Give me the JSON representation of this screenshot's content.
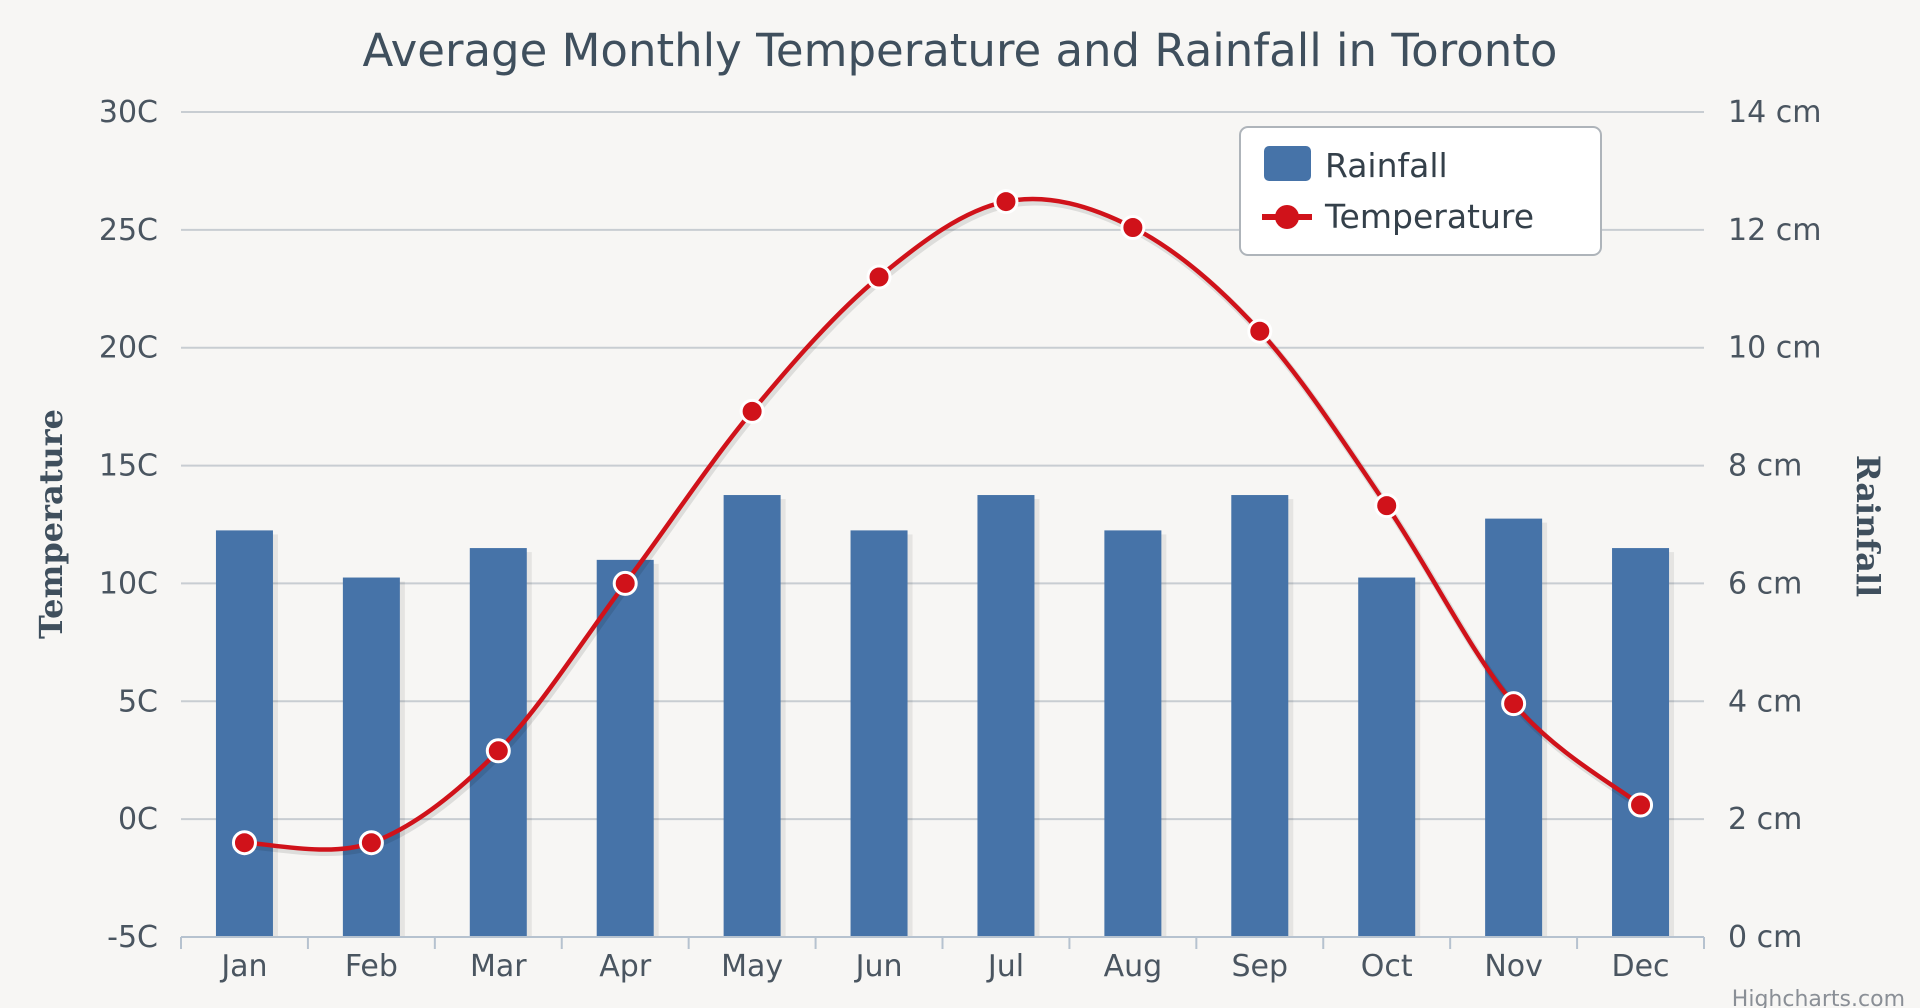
{
  "chart_data": {
    "type": "bar+line",
    "title": "Average Monthly Temperature and Rainfall in Toronto",
    "categories": [
      "Jan",
      "Feb",
      "Mar",
      "Apr",
      "May",
      "Jun",
      "Jul",
      "Aug",
      "Sep",
      "Oct",
      "Nov",
      "Dec"
    ],
    "series": [
      {
        "name": "Rainfall",
        "type": "bar",
        "axis": "right",
        "color": "#4673a8",
        "values": [
          6.9,
          6.1,
          6.6,
          6.4,
          7.5,
          6.9,
          7.5,
          6.9,
          7.5,
          6.1,
          7.1,
          6.6
        ]
      },
      {
        "name": "Temperature",
        "type": "line",
        "axis": "left",
        "color": "#d0121a",
        "values": [
          -1.0,
          -1.0,
          2.9,
          10.0,
          17.3,
          23.0,
          26.2,
          25.1,
          20.7,
          13.3,
          4.9,
          0.6
        ]
      }
    ],
    "left_axis": {
      "title": "Temperature",
      "ylim": [
        -5,
        30
      ],
      "ticks": [
        -5,
        0,
        5,
        10,
        15,
        20,
        25,
        30
      ],
      "tick_labels": [
        "-5C",
        "0C",
        "5C",
        "10C",
        "15C",
        "20C",
        "25C",
        "30C"
      ]
    },
    "right_axis": {
      "title": "Rainfall",
      "ylim": [
        0,
        14
      ],
      "ticks": [
        0,
        2,
        4,
        6,
        8,
        10,
        12,
        14
      ],
      "tick_labels": [
        "0 cm",
        "2 cm",
        "4 cm",
        "6 cm",
        "8 cm",
        "10 cm",
        "12 cm",
        "14 cm"
      ]
    },
    "grid": true,
    "legend": {
      "position": "top-right",
      "entries": [
        "Rainfall",
        "Temperature"
      ]
    },
    "credit": "Highcharts.com"
  },
  "colors": {
    "background": "#f7f6f4",
    "gridline": "#c8cdd2",
    "bar": "#4673a8",
    "line": "#d0121a"
  }
}
